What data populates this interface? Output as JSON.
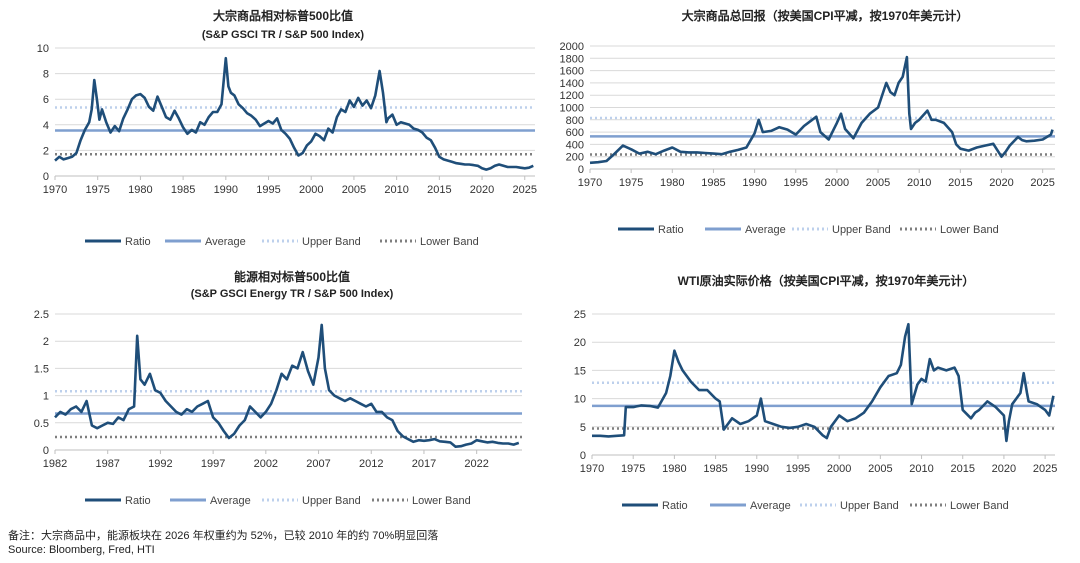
{
  "footer": {
    "note": "备注：大宗商品中，能源板块在 2026 年权重约为 52%，已较 2010 年的约 70%明显回落",
    "source": "Source: Bloomberg, Fred, HTI"
  },
  "colors": {
    "ratio": "#1f4e79",
    "average": "#7f9fcf",
    "upper": "#bdd0ec",
    "lower": "#7f7f7f",
    "grid": "#d9d9d9",
    "axis": "#bfbfbf"
  },
  "chart_data": [
    {
      "type": "line",
      "title": "大宗商品相对标普500比值",
      "subtitle": "(S&P GSCI TR / S&P 500 Index)",
      "xlabel": "",
      "ylabel": "",
      "xlim": [
        1970,
        2026.2
      ],
      "ylim": [
        0,
        10
      ],
      "yticks": [
        0,
        2,
        4,
        6,
        8,
        10
      ],
      "ytick_labels": [
        "0",
        "2",
        "4",
        "6",
        "8",
        "10"
      ],
      "xticks": [
        1970,
        1975,
        1980,
        1985,
        1990,
        1995,
        2000,
        2005,
        2010,
        2015,
        2020,
        2025
      ],
      "grid": true,
      "legend": [
        "Ratio",
        "Average",
        "Upper Band",
        "Lower Band"
      ],
      "average": 3.55,
      "upper_band": 5.35,
      "lower_band": 1.7,
      "series": [
        {
          "name": "Ratio",
          "x": [
            1970,
            1970.5,
            1971,
            1971.5,
            1972,
            1972.5,
            1973,
            1973.5,
            1974,
            1974.3,
            1974.6,
            1974.9,
            1975.2,
            1975.5,
            1976,
            1976.5,
            1977,
            1977.5,
            1978,
            1978.5,
            1979,
            1979.5,
            1980,
            1980.5,
            1981,
            1981.5,
            1982,
            1982.5,
            1983,
            1983.5,
            1984,
            1984.5,
            1985,
            1985.5,
            1986,
            1986.5,
            1987,
            1987.5,
            1988,
            1988.5,
            1989,
            1989.5,
            1990,
            1990.3,
            1990.6,
            1991,
            1991.5,
            1992,
            1992.5,
            1993,
            1993.5,
            1994,
            1994.5,
            1995,
            1995.5,
            1996,
            1996.5,
            1997,
            1997.5,
            1998,
            1998.5,
            1999,
            1999.5,
            2000,
            2000.5,
            2001,
            2001.5,
            2002,
            2002.5,
            2003,
            2003.5,
            2004,
            2004.5,
            2005,
            2005.5,
            2006,
            2006.5,
            2007,
            2007.5,
            2008,
            2008.4,
            2008.8,
            2009,
            2009.5,
            2010,
            2010.5,
            2011,
            2011.5,
            2012,
            2012.5,
            2013,
            2013.5,
            2014,
            2014.5,
            2015,
            2015.5,
            2016,
            2016.5,
            2017,
            2017.5,
            2018,
            2018.5,
            2019,
            2019.5,
            2020,
            2020.5,
            2021,
            2021.5,
            2022,
            2022.5,
            2023,
            2023.5,
            2024,
            2024.5,
            2025,
            2025.5,
            2026
          ],
          "values": [
            1.2,
            1.5,
            1.3,
            1.4,
            1.5,
            1.8,
            2.8,
            3.6,
            4.2,
            5.2,
            7.5,
            6.0,
            4.4,
            5.2,
            4.2,
            3.4,
            3.9,
            3.5,
            4.5,
            5.2,
            6.0,
            6.3,
            6.4,
            6.1,
            5.4,
            5.1,
            6.2,
            5.4,
            4.6,
            4.4,
            5.1,
            4.5,
            3.8,
            3.3,
            3.6,
            3.4,
            4.2,
            4.0,
            4.6,
            5.0,
            5.0,
            5.6,
            9.2,
            7.0,
            6.5,
            6.3,
            5.6,
            5.3,
            4.9,
            4.7,
            4.4,
            3.9,
            4.1,
            4.3,
            4.1,
            4.5,
            3.6,
            3.3,
            2.9,
            2.2,
            1.6,
            1.8,
            2.4,
            2.7,
            3.3,
            3.1,
            2.8,
            3.7,
            3.4,
            4.6,
            5.2,
            5.0,
            5.9,
            5.4,
            6.1,
            5.5,
            5.9,
            5.3,
            6.3,
            8.2,
            6.5,
            4.2,
            4.5,
            4.8,
            4.0,
            4.2,
            4.1,
            4.0,
            3.7,
            3.6,
            3.4,
            3.0,
            2.8,
            2.2,
            1.5,
            1.3,
            1.2,
            1.1,
            1.0,
            0.95,
            0.9,
            0.9,
            0.85,
            0.8,
            0.6,
            0.5,
            0.6,
            0.8,
            0.9,
            0.8,
            0.7,
            0.7,
            0.7,
            0.65,
            0.6,
            0.65,
            0.8
          ]
        }
      ]
    },
    {
      "type": "line",
      "title": "大宗商品总回报（按美国CPI平减，按1970年美元计）",
      "subtitle": "",
      "xlabel": "",
      "ylabel": "",
      "xlim": [
        1970,
        2026.5
      ],
      "ylim": [
        0,
        2000
      ],
      "yticks": [
        0,
        200,
        400,
        600,
        800,
        1000,
        1200,
        1400,
        1600,
        1800,
        2000
      ],
      "ytick_labels": [
        "0",
        "200",
        "400",
        "600",
        "800",
        "1000",
        "1200",
        "1400",
        "1600",
        "1800",
        "2000"
      ],
      "xticks": [
        1970,
        1975,
        1980,
        1985,
        1990,
        1995,
        2000,
        2005,
        2010,
        2015,
        2020,
        2025
      ],
      "grid": true,
      "legend": [
        "Ratio",
        "Average",
        "Upper Band",
        "Lower Band"
      ],
      "average": 530,
      "upper_band": 830,
      "lower_band": 235,
      "series": [
        {
          "name": "Ratio",
          "x": [
            1970,
            1971,
            1972,
            1973,
            1974,
            1975,
            1976,
            1977,
            1978,
            1979,
            1980,
            1981,
            1982,
            1983,
            1984,
            1985,
            1986,
            1987,
            1988,
            1989,
            1990,
            1990.5,
            1991,
            1992,
            1993,
            1994,
            1995,
            1996,
            1997,
            1997.5,
            1998,
            1999,
            2000,
            2000.5,
            2001,
            2002,
            2003,
            2004,
            2005,
            2006,
            2006.5,
            2007,
            2007.5,
            2008,
            2008.5,
            2008.8,
            2009,
            2009.5,
            2010,
            2011,
            2011.5,
            2012,
            2013,
            2014,
            2014.5,
            2015,
            2016,
            2017,
            2018,
            2019,
            2020,
            2020.5,
            2021,
            2022,
            2022.5,
            2023,
            2024,
            2025,
            2025.5,
            2026,
            2026.2
          ],
          "values": [
            100,
            110,
            130,
            250,
            380,
            320,
            250,
            280,
            240,
            300,
            350,
            280,
            270,
            270,
            260,
            250,
            240,
            280,
            310,
            350,
            580,
            800,
            600,
            620,
            680,
            640,
            560,
            700,
            800,
            850,
            600,
            480,
            750,
            900,
            650,
            500,
            750,
            900,
            1000,
            1400,
            1250,
            1200,
            1400,
            1500,
            1820,
            900,
            650,
            750,
            800,
            950,
            800,
            800,
            750,
            600,
            400,
            330,
            300,
            350,
            380,
            410,
            200,
            280,
            380,
            520,
            470,
            450,
            460,
            480,
            520,
            560,
            640
          ]
        }
      ]
    },
    {
      "type": "line",
      "title": "能源相对标普500比值",
      "subtitle": "(S&P GSCI Energy TR / S&P 500 Index)",
      "xlabel": "",
      "ylabel": "",
      "xlim": [
        1982,
        2026.3
      ],
      "ylim": [
        0,
        2.5
      ],
      "yticks": [
        0,
        0.5,
        1,
        1.5,
        2,
        2.5
      ],
      "ytick_labels": [
        "0",
        "0.5",
        "1",
        "1.5",
        "2",
        "2.5"
      ],
      "xticks": [
        1982,
        1987,
        1992,
        1997,
        2002,
        2007,
        2012,
        2017,
        2022
      ],
      "grid": true,
      "legend": [
        "Ratio",
        "Average",
        "Upper Band",
        "Lower Band"
      ],
      "average": 0.67,
      "upper_band": 1.08,
      "lower_band": 0.24,
      "series": [
        {
          "name": "Ratio",
          "x": [
            1982,
            1982.5,
            1983,
            1983.5,
            1984,
            1984.5,
            1985,
            1985.5,
            1986,
            1986.5,
            1987,
            1987.5,
            1988,
            1988.5,
            1989,
            1989.5,
            1989.8,
            1990.1,
            1990.5,
            1991,
            1991.5,
            1992,
            1992.5,
            1993,
            1993.5,
            1994,
            1994.5,
            1995,
            1995.5,
            1996,
            1996.5,
            1997,
            1997.5,
            1998,
            1998.5,
            1999,
            1999.5,
            2000,
            2000.5,
            2001,
            2001.5,
            2002,
            2002.5,
            2003,
            2003.5,
            2004,
            2004.5,
            2005,
            2005.5,
            2006,
            2006.5,
            2007,
            2007.3,
            2007.6,
            2008,
            2008.5,
            2009,
            2009.5,
            2010,
            2010.5,
            2011,
            2011.5,
            2012,
            2012.5,
            2013,
            2013.5,
            2014,
            2014.5,
            2015,
            2015.5,
            2016,
            2016.5,
            2017,
            2017.5,
            2018,
            2018.5,
            2019,
            2019.5,
            2020,
            2020.5,
            2021,
            2021.5,
            2022,
            2022.5,
            2023,
            2023.5,
            2024,
            2024.5,
            2025,
            2025.5,
            2026
          ],
          "values": [
            0.6,
            0.7,
            0.65,
            0.75,
            0.8,
            0.7,
            0.9,
            0.45,
            0.4,
            0.45,
            0.5,
            0.48,
            0.6,
            0.55,
            0.75,
            0.8,
            2.1,
            1.3,
            1.2,
            1.4,
            1.1,
            1.05,
            0.9,
            0.8,
            0.7,
            0.65,
            0.75,
            0.7,
            0.8,
            0.85,
            0.9,
            0.6,
            0.5,
            0.35,
            0.22,
            0.3,
            0.45,
            0.55,
            0.8,
            0.7,
            0.6,
            0.7,
            0.85,
            1.1,
            1.4,
            1.3,
            1.55,
            1.5,
            1.8,
            1.45,
            1.2,
            1.7,
            2.3,
            1.5,
            1.1,
            1.0,
            0.95,
            0.9,
            0.95,
            0.9,
            0.85,
            0.8,
            0.85,
            0.7,
            0.7,
            0.6,
            0.55,
            0.35,
            0.25,
            0.2,
            0.15,
            0.18,
            0.17,
            0.18,
            0.2,
            0.16,
            0.15,
            0.14,
            0.06,
            0.07,
            0.1,
            0.12,
            0.18,
            0.16,
            0.14,
            0.15,
            0.13,
            0.12,
            0.12,
            0.1,
            0.13
          ]
        }
      ]
    },
    {
      "type": "line",
      "title": "WTI原油实际价格（按美国CPI平减，按1970年美元计）",
      "subtitle": "",
      "xlabel": "",
      "ylabel": "",
      "xlim": [
        1970,
        2026.2
      ],
      "ylim": [
        0,
        25
      ],
      "yticks": [
        0,
        5,
        10,
        15,
        20,
        25
      ],
      "ytick_labels": [
        "0",
        "5",
        "10",
        "15",
        "20",
        "25"
      ],
      "xticks": [
        1970,
        1975,
        1980,
        1985,
        1990,
        1995,
        2000,
        2005,
        2010,
        2015,
        2020,
        2025
      ],
      "grid": true,
      "legend": [
        "Ratio",
        "Average",
        "Upper Band",
        "Lower Band"
      ],
      "average": 8.7,
      "upper_band": 12.8,
      "lower_band": 4.7,
      "series": [
        {
          "name": "Ratio",
          "x": [
            1970,
            1971,
            1972,
            1973,
            1973.9,
            1974.1,
            1975,
            1976,
            1977,
            1978,
            1979,
            1979.5,
            1980,
            1980.5,
            1981,
            1982,
            1983,
            1984,
            1985,
            1985.5,
            1986,
            1986.5,
            1987,
            1988,
            1989,
            1990,
            1990.5,
            1991,
            1992,
            1993,
            1994,
            1995,
            1996,
            1997,
            1998,
            1998.5,
            1999,
            2000,
            2001,
            2002,
            2003,
            2004,
            2005,
            2006,
            2007,
            2007.5,
            2008,
            2008.4,
            2008.8,
            2009,
            2009.5,
            2010,
            2010.5,
            2011,
            2011.5,
            2012,
            2013,
            2014,
            2014.5,
            2015,
            2016,
            2016.5,
            2017,
            2018,
            2019,
            2020,
            2020.3,
            2020.6,
            2021,
            2022,
            2022.4,
            2022.8,
            2023,
            2024,
            2025,
            2025.5,
            2026
          ],
          "values": [
            3.4,
            3.4,
            3.3,
            3.4,
            3.5,
            8.5,
            8.5,
            8.8,
            8.7,
            8.4,
            11.0,
            14.0,
            18.5,
            16.5,
            15.0,
            13.0,
            11.5,
            11.5,
            10.0,
            9.5,
            4.5,
            5.5,
            6.5,
            5.5,
            6.0,
            7.0,
            10.0,
            6.0,
            5.5,
            5.0,
            4.8,
            5.0,
            5.5,
            5.0,
            3.5,
            3.0,
            5.0,
            7.0,
            6.0,
            6.5,
            7.5,
            9.5,
            12.0,
            14.0,
            14.5,
            16.0,
            21.0,
            23.2,
            9.0,
            10.0,
            12.5,
            13.5,
            13.0,
            17.0,
            15.0,
            15.5,
            15.0,
            15.5,
            14.0,
            8.0,
            6.5,
            7.5,
            8.0,
            9.5,
            8.5,
            7.0,
            2.5,
            6.0,
            9.0,
            11.0,
            14.5,
            11.0,
            9.5,
            9.0,
            8.0,
            7.0,
            10.5
          ]
        }
      ]
    }
  ]
}
